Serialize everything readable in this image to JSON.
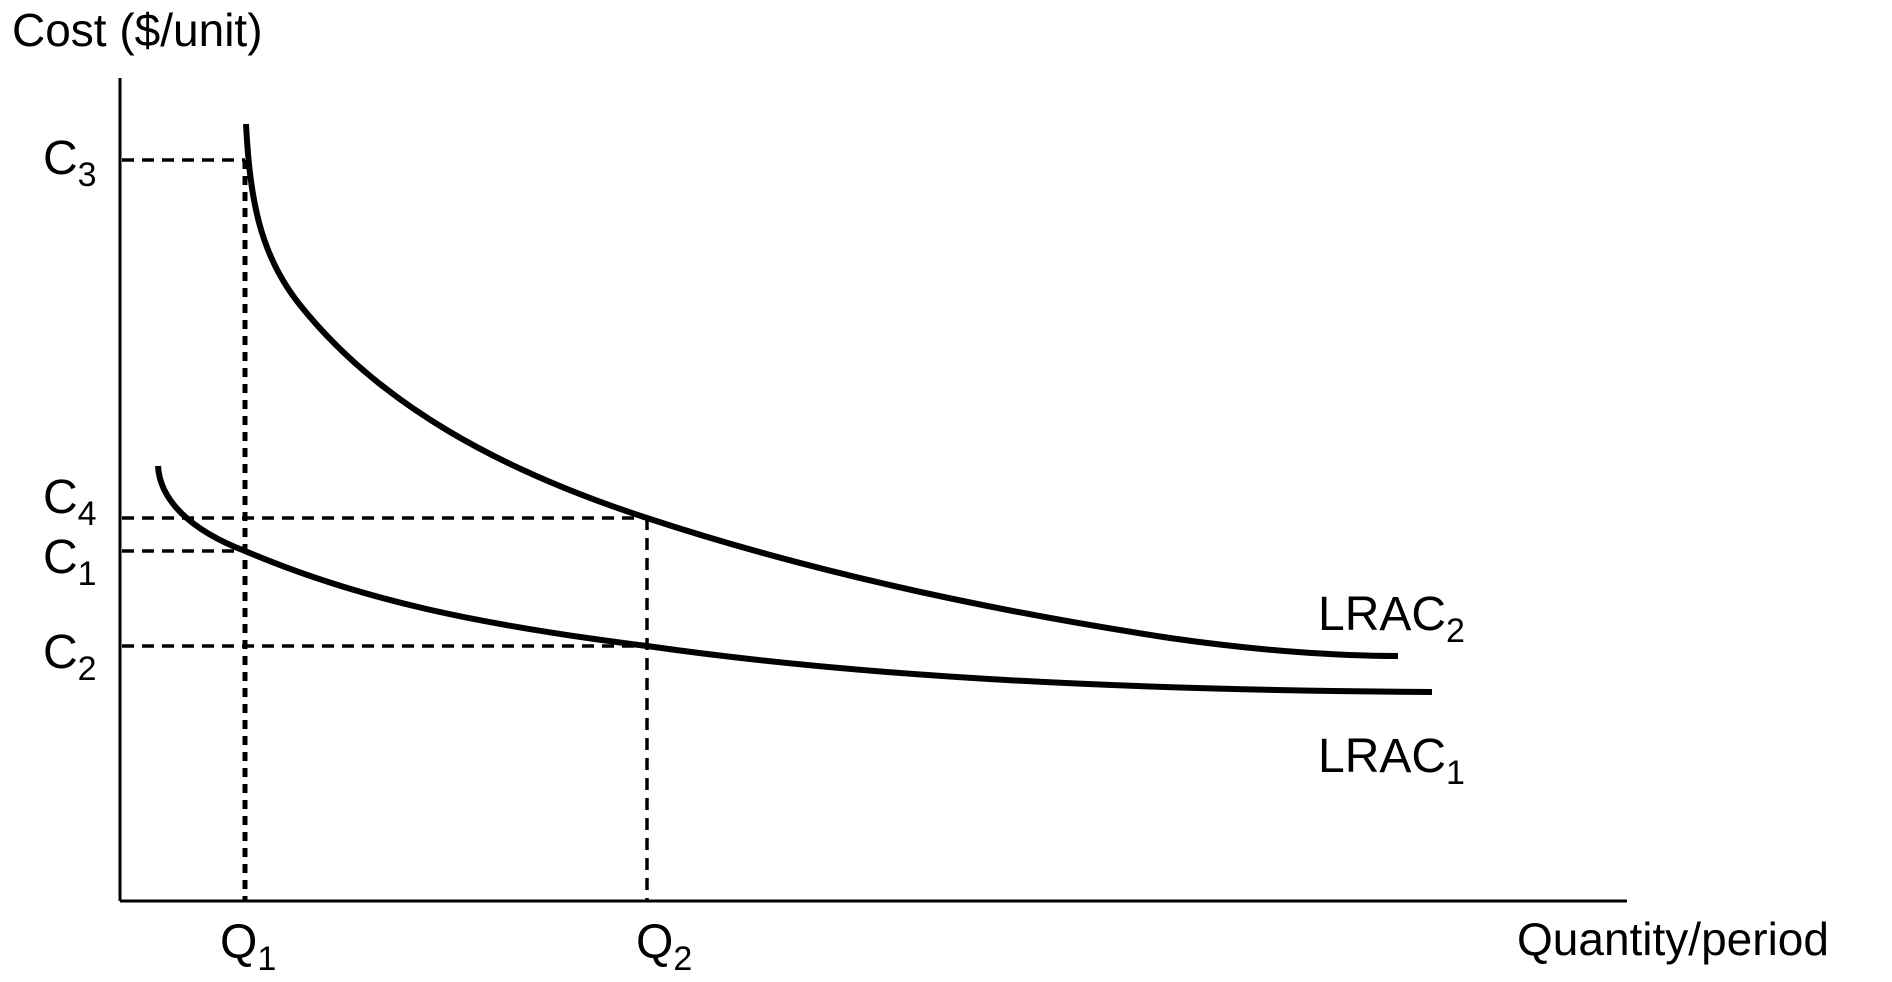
{
  "axes": {
    "y_title": "Cost ($/unit)",
    "x_title": "Quantity/period"
  },
  "y_ticks": [
    {
      "base": "C",
      "sub": "3"
    },
    {
      "base": "C",
      "sub": "4"
    },
    {
      "base": "C",
      "sub": "1"
    },
    {
      "base": "C",
      "sub": "2"
    }
  ],
  "x_ticks": [
    {
      "base": "Q",
      "sub": "1"
    },
    {
      "base": "Q",
      "sub": "2"
    }
  ],
  "curves": [
    {
      "base": "LRAC",
      "sub": "2",
      "name": "LRAC2"
    },
    {
      "base": "LRAC",
      "sub": "1",
      "name": "LRAC1"
    }
  ],
  "colors": {
    "line": "#000000",
    "background": "#ffffff"
  }
}
